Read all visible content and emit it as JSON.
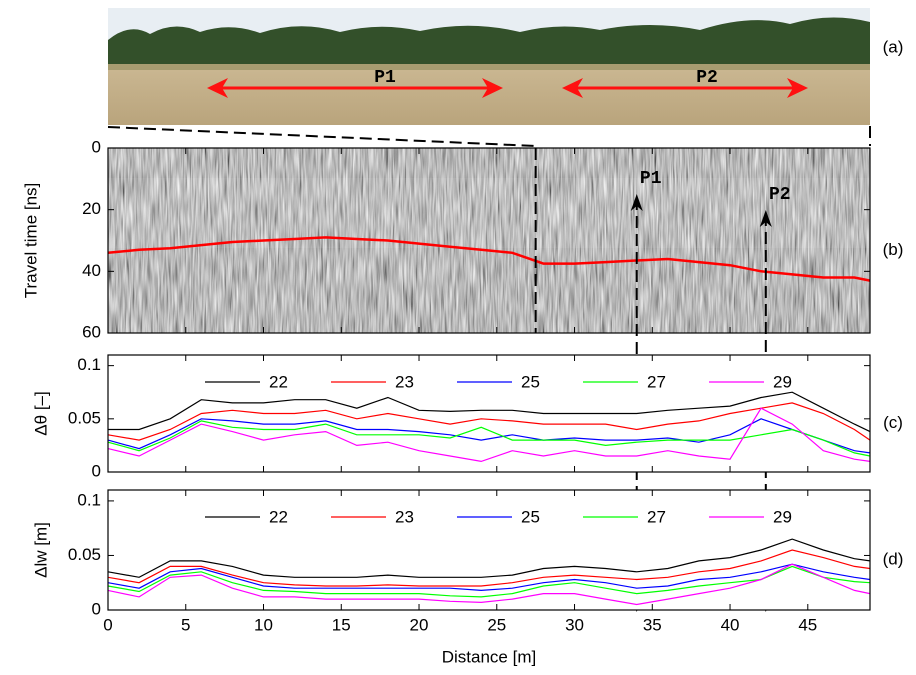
{
  "photo": {
    "panel_label": "(a)",
    "arrow_labels": [
      "P1",
      "P2"
    ]
  },
  "chart_data": [
    {
      "type": "line",
      "panel_label": "(b)",
      "ylabel": "Travel time [ns]",
      "y_inverted": true,
      "xlim": [
        0,
        49
      ],
      "xticks": [
        0,
        5,
        10,
        15,
        20,
        25,
        30,
        35,
        40,
        45
      ],
      "ylim": [
        0,
        60
      ],
      "yticks": [
        0,
        20,
        40,
        60
      ],
      "vline": 27.5,
      "markers": [
        {
          "label": "P1",
          "x": 34
        },
        {
          "label": "P2",
          "x": 42.3
        }
      ],
      "x": [
        0,
        2,
        4,
        6,
        8,
        10,
        12,
        14,
        16,
        18,
        20,
        22,
        24,
        26,
        28,
        30,
        32,
        34,
        36,
        38,
        40,
        42,
        44,
        46,
        48,
        49
      ],
      "series": [
        {
          "color": "#ff0000",
          "values": [
            34,
            33,
            32.5,
            31.5,
            30.5,
            30,
            29.5,
            29,
            29.5,
            30,
            31,
            32,
            33,
            34,
            37.5,
            37.5,
            37,
            36.5,
            36,
            37,
            38,
            40,
            41,
            42,
            42,
            43
          ]
        }
      ]
    },
    {
      "type": "line",
      "panel_label": "(c)",
      "ylabel": "Δθ [–]",
      "legend": true,
      "xlim": [
        0,
        49
      ],
      "xticks": [
        0,
        5,
        10,
        15,
        20,
        25,
        30,
        35,
        40,
        45
      ],
      "ylim": [
        0,
        0.11
      ],
      "yticks": [
        0,
        0.05,
        0.1
      ],
      "x": [
        0,
        2,
        4,
        6,
        8,
        10,
        12,
        14,
        16,
        18,
        20,
        22,
        24,
        26,
        28,
        30,
        32,
        34,
        36,
        38,
        40,
        42,
        44,
        46,
        48,
        49
      ],
      "series": [
        {
          "name": "22",
          "color": "#000000",
          "values": [
            0.04,
            0.04,
            0.05,
            0.068,
            0.065,
            0.065,
            0.068,
            0.068,
            0.06,
            0.07,
            0.058,
            0.057,
            0.058,
            0.058,
            0.055,
            0.055,
            0.055,
            0.055,
            0.058,
            0.06,
            0.062,
            0.07,
            0.075,
            0.06,
            0.045,
            0.038
          ]
        },
        {
          "name": "23",
          "color": "#ff0000",
          "values": [
            0.035,
            0.03,
            0.04,
            0.055,
            0.058,
            0.055,
            0.055,
            0.058,
            0.05,
            0.055,
            0.05,
            0.045,
            0.05,
            0.048,
            0.045,
            0.045,
            0.045,
            0.04,
            0.045,
            0.048,
            0.055,
            0.06,
            0.065,
            0.055,
            0.04,
            0.03
          ]
        },
        {
          "name": "25",
          "color": "#0000ff",
          "values": [
            0.03,
            0.022,
            0.035,
            0.05,
            0.048,
            0.045,
            0.045,
            0.048,
            0.04,
            0.04,
            0.038,
            0.035,
            0.03,
            0.035,
            0.03,
            0.032,
            0.03,
            0.03,
            0.032,
            0.028,
            0.035,
            0.05,
            0.04,
            0.03,
            0.02,
            0.018
          ]
        },
        {
          "name": "27",
          "color": "#00ff00",
          "values": [
            0.028,
            0.02,
            0.032,
            0.048,
            0.042,
            0.04,
            0.04,
            0.045,
            0.035,
            0.035,
            0.035,
            0.032,
            0.042,
            0.03,
            0.03,
            0.03,
            0.025,
            0.028,
            0.03,
            0.03,
            0.03,
            0.035,
            0.04,
            0.03,
            0.018,
            0.015
          ]
        },
        {
          "name": "29",
          "color": "#ff00ff",
          "values": [
            0.022,
            0.015,
            0.03,
            0.045,
            0.038,
            0.03,
            0.035,
            0.038,
            0.025,
            0.028,
            0.02,
            0.015,
            0.01,
            0.02,
            0.015,
            0.02,
            0.015,
            0.015,
            0.02,
            0.015,
            0.012,
            0.06,
            0.045,
            0.02,
            0.012,
            0.01
          ]
        }
      ]
    },
    {
      "type": "line",
      "panel_label": "(d)",
      "ylabel": "Δlw [m]",
      "xlabel": "Distance [m]",
      "legend": true,
      "xticklabels": true,
      "xlim": [
        0,
        49
      ],
      "xticks": [
        0,
        5,
        10,
        15,
        20,
        25,
        30,
        35,
        40,
        45
      ],
      "ylim": [
        0,
        0.11
      ],
      "yticks": [
        0,
        0.05,
        0.1
      ],
      "x": [
        0,
        2,
        4,
        6,
        8,
        10,
        12,
        14,
        16,
        18,
        20,
        22,
        24,
        26,
        28,
        30,
        32,
        34,
        36,
        38,
        40,
        42,
        44,
        46,
        48,
        49
      ],
      "series": [
        {
          "name": "22",
          "color": "#000000",
          "values": [
            0.035,
            0.03,
            0.045,
            0.045,
            0.04,
            0.032,
            0.03,
            0.03,
            0.03,
            0.032,
            0.03,
            0.03,
            0.03,
            0.032,
            0.038,
            0.04,
            0.038,
            0.035,
            0.038,
            0.045,
            0.048,
            0.055,
            0.065,
            0.055,
            0.047,
            0.045
          ]
        },
        {
          "name": "23",
          "color": "#ff0000",
          "values": [
            0.03,
            0.025,
            0.04,
            0.04,
            0.032,
            0.025,
            0.023,
            0.022,
            0.022,
            0.023,
            0.022,
            0.022,
            0.022,
            0.025,
            0.03,
            0.032,
            0.03,
            0.028,
            0.03,
            0.035,
            0.038,
            0.045,
            0.055,
            0.048,
            0.04,
            0.038
          ]
        },
        {
          "name": "25",
          "color": "#0000ff",
          "values": [
            0.025,
            0.02,
            0.035,
            0.038,
            0.03,
            0.022,
            0.02,
            0.02,
            0.02,
            0.02,
            0.02,
            0.02,
            0.018,
            0.02,
            0.025,
            0.028,
            0.025,
            0.02,
            0.022,
            0.028,
            0.03,
            0.035,
            0.042,
            0.035,
            0.03,
            0.028
          ]
        },
        {
          "name": "27",
          "color": "#00ff00",
          "values": [
            0.022,
            0.017,
            0.032,
            0.035,
            0.025,
            0.018,
            0.017,
            0.015,
            0.015,
            0.015,
            0.015,
            0.013,
            0.012,
            0.015,
            0.022,
            0.025,
            0.02,
            0.015,
            0.018,
            0.022,
            0.025,
            0.028,
            0.04,
            0.03,
            0.026,
            0.025
          ]
        },
        {
          "name": "29",
          "color": "#ff00ff",
          "values": [
            0.018,
            0.012,
            0.03,
            0.032,
            0.02,
            0.012,
            0.012,
            0.01,
            0.01,
            0.01,
            0.01,
            0.008,
            0.007,
            0.01,
            0.015,
            0.015,
            0.01,
            0.005,
            0.01,
            0.015,
            0.02,
            0.028,
            0.042,
            0.03,
            0.018,
            0.015
          ]
        }
      ]
    }
  ]
}
